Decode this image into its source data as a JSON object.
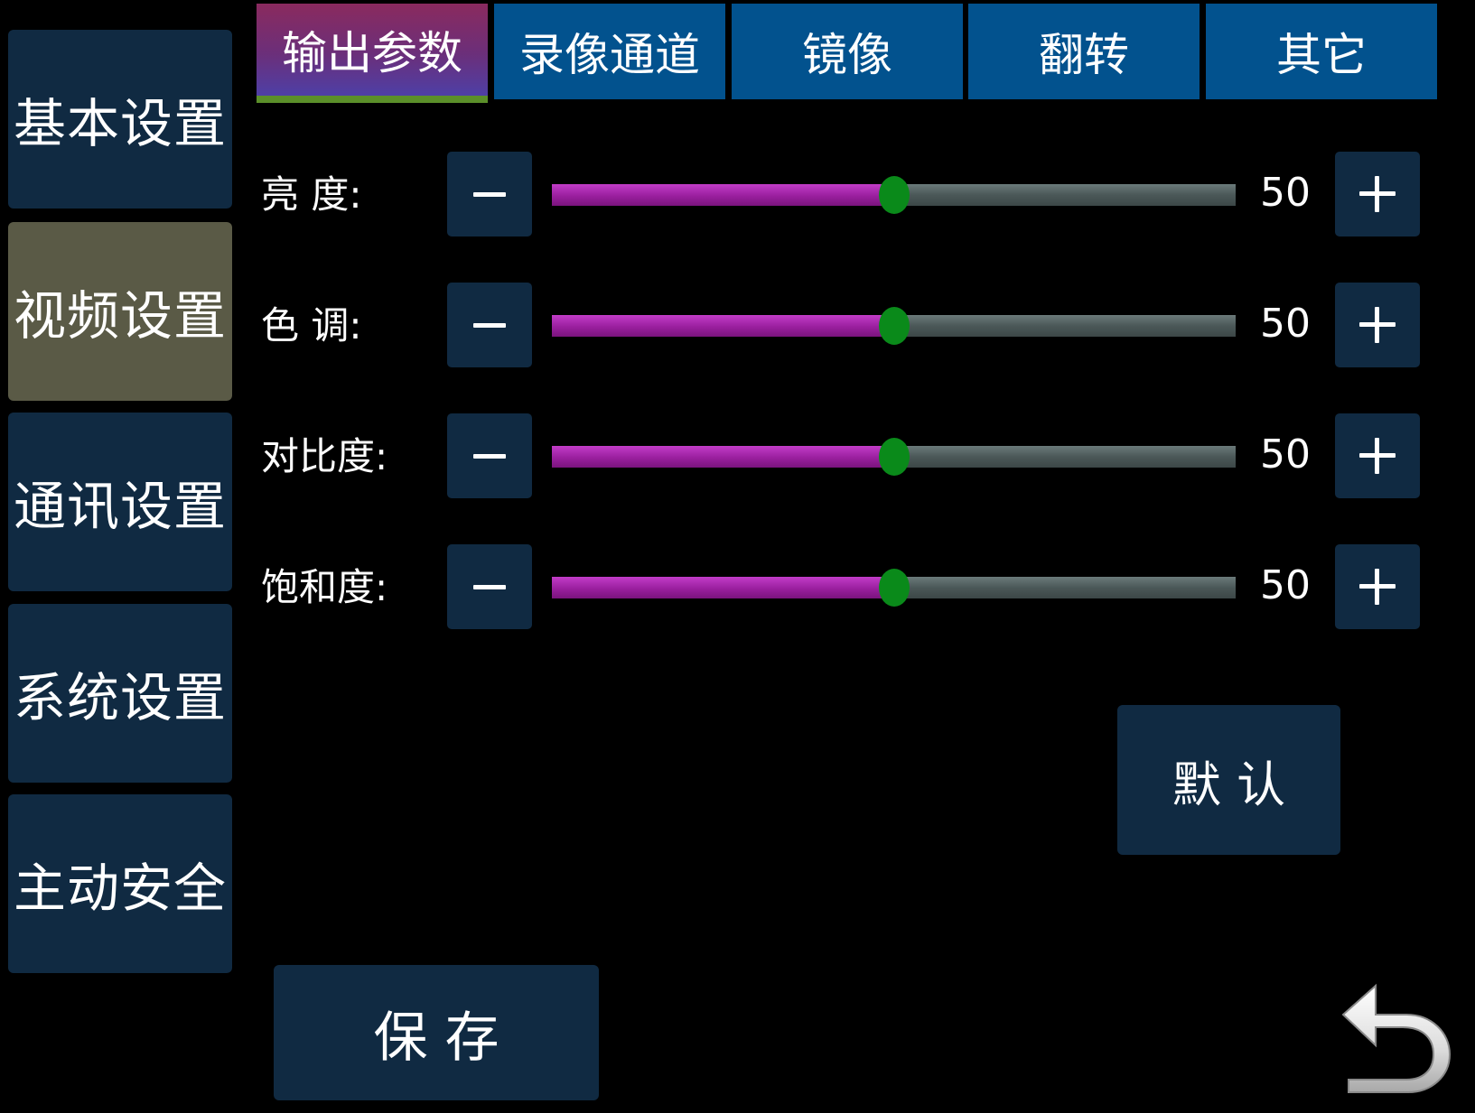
{
  "sidebar": {
    "items": [
      {
        "label": "基本设置",
        "active": false
      },
      {
        "label": "视频设置",
        "active": true
      },
      {
        "label": "通讯设置",
        "active": false
      },
      {
        "label": "系统设置",
        "active": false
      },
      {
        "label": "主动安全",
        "active": false
      }
    ]
  },
  "tabs": [
    {
      "label": "输出参数",
      "active": true
    },
    {
      "label": "录像通道",
      "active": false
    },
    {
      "label": "镜像",
      "active": false
    },
    {
      "label": "翻转",
      "active": false
    },
    {
      "label": "其它",
      "active": false
    }
  ],
  "settings": [
    {
      "label": "亮 度:",
      "value": "50",
      "fraction": 0.5
    },
    {
      "label": "色 调:",
      "value": "50",
      "fraction": 0.5
    },
    {
      "label": "对比度:",
      "value": "50",
      "fraction": 0.5
    },
    {
      "label": "饱和度:",
      "value": "50",
      "fraction": 0.5
    }
  ],
  "buttons": {
    "default_label": "默 认",
    "save_label": "保 存"
  },
  "icons": {
    "minus": "minus-icon",
    "plus": "plus-icon",
    "back": "back-arrow-icon"
  },
  "colors": {
    "background": "#000000",
    "panel": "#102a42",
    "sidebar_active": "#5a5a46",
    "tab": "#02528e",
    "slider_fill": "#9a1f9e",
    "slider_track": "#4b5858",
    "slider_thumb": "#0a8a1a"
  }
}
